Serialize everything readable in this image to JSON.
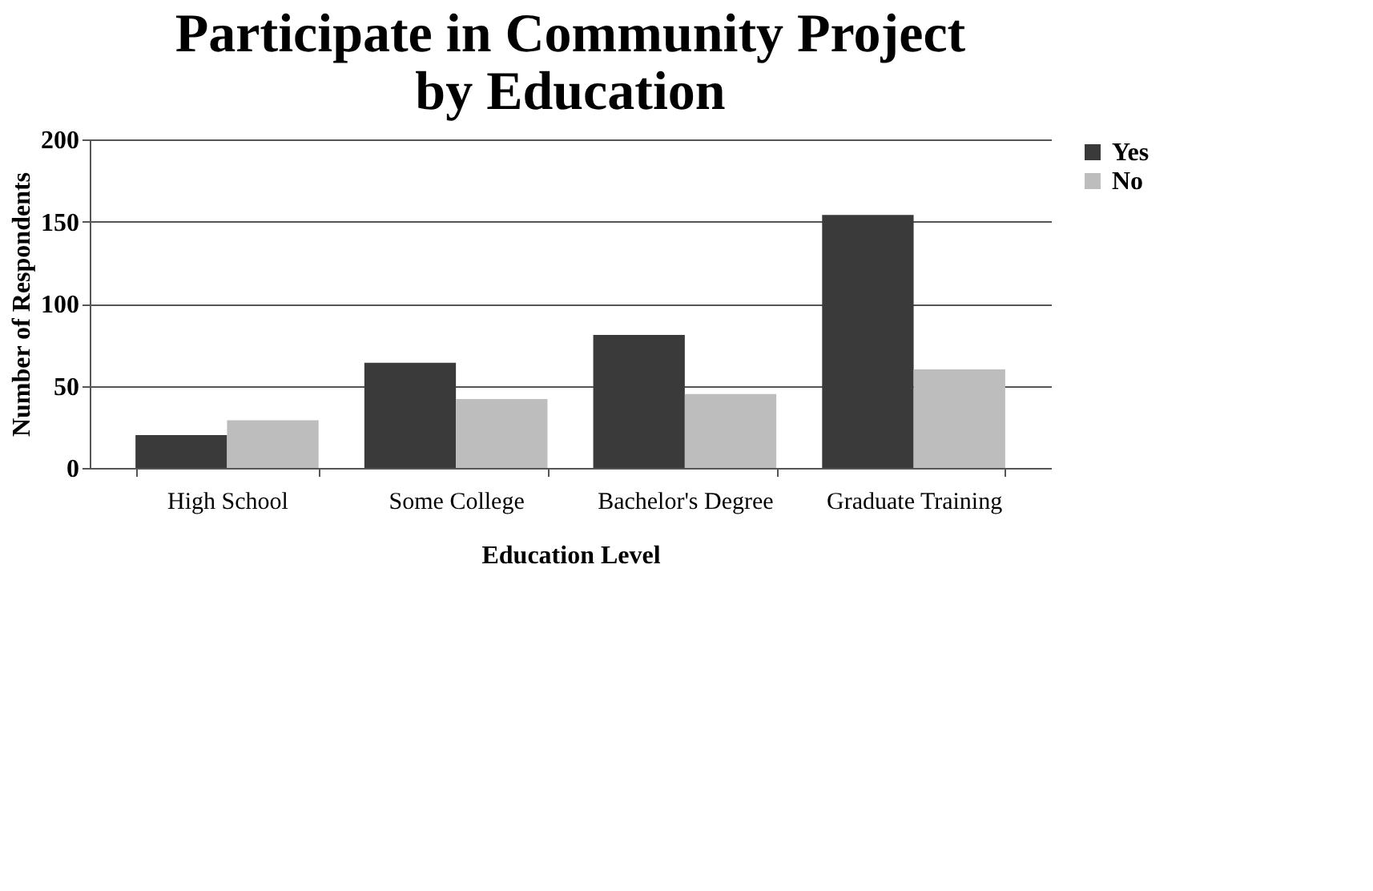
{
  "chart_data": {
    "type": "bar",
    "title": [
      "Participate in Community Project",
      "by Education"
    ],
    "xlabel": "Education Level",
    "ylabel": "Number of Respondents",
    "categories": [
      "High School",
      "Some College",
      "Bachelor's Degree",
      "Graduate Training"
    ],
    "series": [
      {
        "name": "Yes",
        "color": "#3a3a3a",
        "values": [
          20,
          64,
          81,
          154
        ]
      },
      {
        "name": "No",
        "color": "#bdbdbd",
        "values": [
          29,
          42,
          45,
          60
        ]
      }
    ],
    "ylim": [
      0,
      200
    ],
    "yticks": [
      0,
      50,
      100,
      150,
      200
    ],
    "grid": "y",
    "legend": "right"
  }
}
